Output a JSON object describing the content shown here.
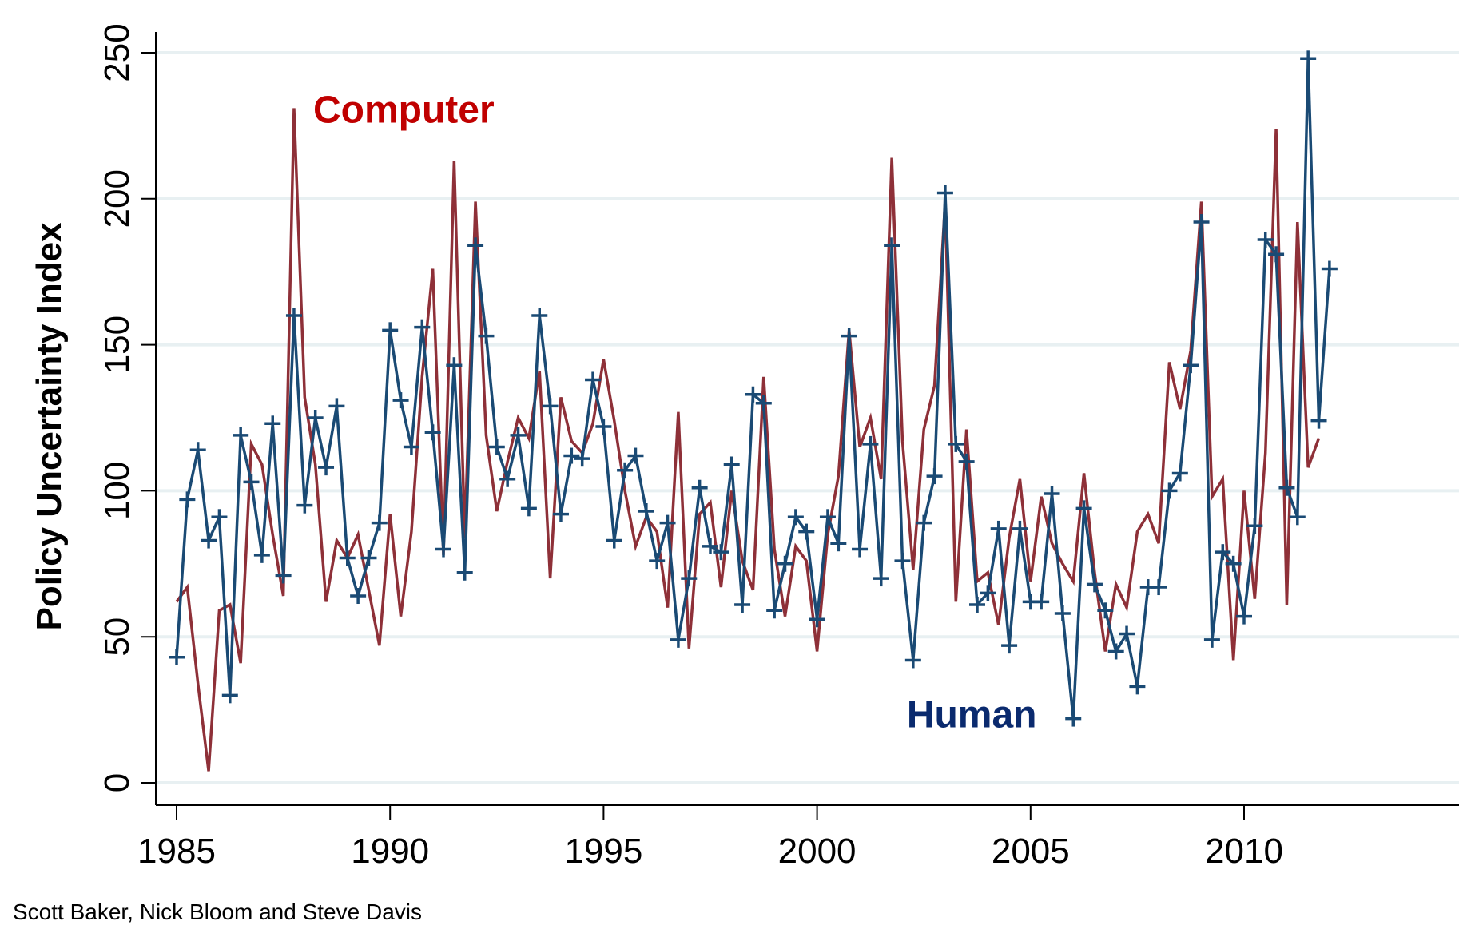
{
  "chart_data": {
    "type": "line",
    "title": "",
    "xlabel": "",
    "ylabel": "Policy Uncertainty Index",
    "xlim": [
      1985,
      2015
    ],
    "ylim": [
      0,
      260
    ],
    "xticks": [
      1985,
      1990,
      1995,
      2000,
      2005,
      2010
    ],
    "yticks": [
      0,
      50,
      100,
      150,
      200,
      250
    ],
    "grid": true,
    "frequency": "quarterly",
    "start": 1985.0,
    "step": 0.25,
    "series": [
      {
        "name": "Computer",
        "color": "#8e3038",
        "marker": "none",
        "values": [
          62,
          67,
          34,
          4,
          59,
          61,
          41,
          116,
          109,
          85,
          64,
          231,
          132,
          109,
          62,
          83,
          77,
          85,
          66,
          47,
          92,
          57,
          86,
          139,
          176,
          78,
          213,
          84,
          199,
          119,
          93,
          110,
          125,
          118,
          141,
          70,
          132,
          117,
          113,
          123,
          145,
          124,
          100,
          81,
          91,
          86,
          60,
          127,
          46,
          92,
          96,
          67,
          100,
          76,
          66,
          139,
          80,
          57,
          81,
          76,
          45,
          85,
          105,
          155,
          115,
          125,
          104,
          214,
          117,
          73,
          121,
          136,
          199,
          62,
          121,
          69,
          72,
          54,
          84,
          104,
          69,
          98,
          82,
          75,
          69,
          106,
          72,
          45,
          68,
          60,
          86,
          92,
          82,
          144,
          128,
          148,
          199,
          98,
          104,
          42,
          100,
          63,
          113,
          224,
          61,
          192,
          108,
          118
        ]
      },
      {
        "name": "Human",
        "color": "#1a4a74",
        "marker": "plus",
        "values": [
          43,
          97,
          114,
          83,
          91,
          30,
          119,
          103,
          78,
          123,
          71,
          160,
          95,
          125,
          108,
          129,
          77,
          64,
          77,
          89,
          155,
          131,
          115,
          156,
          120,
          80,
          143,
          72,
          184,
          153,
          115,
          104,
          119,
          94,
          160,
          129,
          92,
          112,
          111,
          138,
          122,
          83,
          107,
          112,
          93,
          76,
          89,
          49,
          70,
          101,
          81,
          79,
          109,
          61,
          133,
          130,
          59,
          75,
          91,
          86,
          56,
          91,
          82,
          153,
          80,
          116,
          70,
          184,
          76,
          42,
          89,
          105,
          202,
          116,
          110,
          61,
          65,
          87,
          47,
          87,
          62,
          62,
          99,
          58,
          22,
          94,
          68,
          59,
          45,
          51,
          33,
          67,
          67,
          100,
          106,
          143,
          192,
          49,
          79,
          75,
          57,
          88,
          186,
          181,
          101,
          91,
          248,
          124,
          176
        ]
      }
    ],
    "annotations": [
      {
        "text": "Computer",
        "color": "#c00000",
        "x": 1988.2,
        "y": 226
      },
      {
        "text": "Human",
        "color": "#0a2a6e",
        "x": 2002.1,
        "y": 19
      }
    ]
  },
  "footer": {
    "credit": "Scott Baker, Nick Bloom and Steve Davis"
  }
}
